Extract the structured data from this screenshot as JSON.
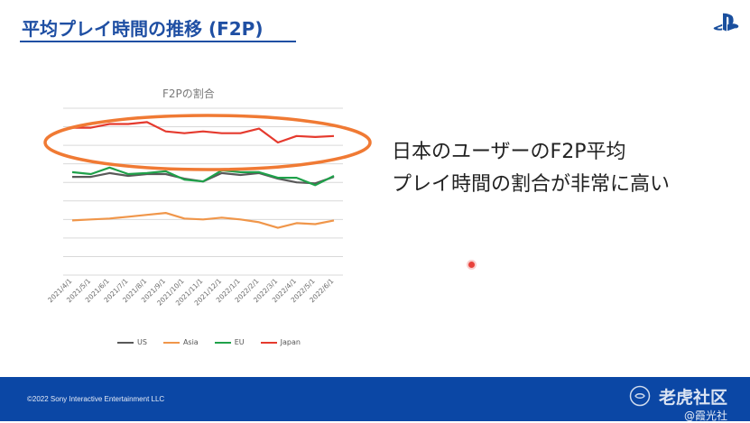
{
  "slide": {
    "title": "平均プレイ時間の推移 (F2P)",
    "side_text_line1": "日本のユーザーのF2P平均",
    "side_text_line2": "プレイ時間の割合が非常に高い",
    "footer_copyright": "©2022 Sony Interactive Entertainment LLC",
    "watermark_line1": "老虎社区",
    "watermark_line2": "@霞光社",
    "colors": {
      "title_blue": "#1f4fa3",
      "footer_blue": "#0b47a5",
      "highlight_ellipse": "#f07a34"
    }
  },
  "chart_data": {
    "type": "line",
    "title": "F2Pの割合",
    "xlabel": "",
    "ylabel": "",
    "x": [
      "2021/4/1",
      "2021/5/1",
      "2021/6/1",
      "2021/7/1",
      "2021/8/1",
      "2021/9/1",
      "2021/10/1",
      "2021/11/1",
      "2021/12/1",
      "2022/1/1",
      "2022/2/1",
      "2022/3/1",
      "2022/4/1",
      "2022/5/1",
      "2022/6/1"
    ],
    "ylim": [
      0,
      9
    ],
    "y_tick_labels_shown": false,
    "grid": "horizontal",
    "legend_position": "bottom",
    "highlight": "ellipse around Japan series",
    "series": [
      {
        "name": "US",
        "color": "#595959",
        "values": [
          5.3,
          5.3,
          5.5,
          5.35,
          5.45,
          5.45,
          5.2,
          5.05,
          5.5,
          5.4,
          5.5,
          5.2,
          5.0,
          4.95,
          5.3
        ]
      },
      {
        "name": "Asia",
        "color": "#f0964a",
        "values": [
          2.95,
          3.0,
          3.05,
          3.15,
          3.25,
          3.35,
          3.05,
          3.0,
          3.1,
          3.0,
          2.85,
          2.55,
          2.8,
          2.75,
          2.95
        ]
      },
      {
        "name": "EU",
        "color": "#1fa14a",
        "values": [
          5.55,
          5.45,
          5.8,
          5.45,
          5.5,
          5.6,
          5.15,
          5.05,
          5.65,
          5.55,
          5.55,
          5.25,
          5.25,
          4.85,
          5.35
        ]
      },
      {
        "name": "Japan",
        "color": "#e53a2e",
        "values": [
          7.95,
          7.95,
          8.15,
          8.15,
          8.25,
          7.75,
          7.65,
          7.75,
          7.65,
          7.65,
          7.9,
          7.15,
          7.5,
          7.45,
          7.5
        ]
      }
    ]
  }
}
